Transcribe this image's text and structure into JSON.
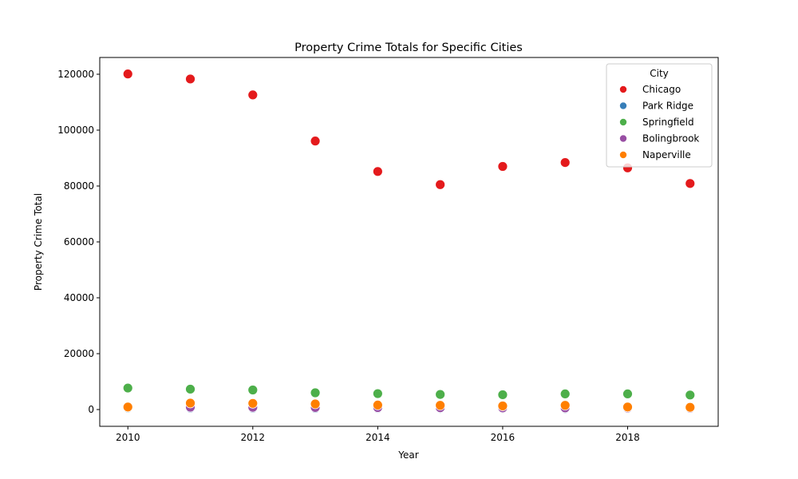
{
  "chart_data": {
    "type": "scatter",
    "title": "Property Crime Totals for Specific Cities",
    "xlabel": "Year",
    "ylabel": "Property Crime Total",
    "xlim": [
      2009.55,
      2019.45
    ],
    "ylim": [
      -6000,
      126000
    ],
    "xticks": [
      2010,
      2012,
      2014,
      2016,
      2018
    ],
    "yticks": [
      0,
      20000,
      40000,
      60000,
      80000,
      100000,
      120000
    ],
    "grid": false,
    "legend": {
      "title": "City",
      "position": "top-right"
    },
    "series": [
      {
        "name": "Chicago",
        "color": "#e41a1c",
        "x": [
          2010,
          2011,
          2012,
          2013,
          2014,
          2015,
          2016,
          2017,
          2018,
          2019
        ],
        "y": [
          120100,
          118300,
          112600,
          96100,
          85200,
          80500,
          87000,
          88400,
          86500,
          80900
        ]
      },
      {
        "name": "Park Ridge",
        "color": "#377eb8",
        "x": [
          2010,
          2011,
          2012,
          2013,
          2014,
          2015,
          2016,
          2017,
          2018,
          2019
        ],
        "y": [
          600,
          550,
          500,
          450,
          420,
          400,
          400,
          350,
          350,
          350
        ]
      },
      {
        "name": "Springfield",
        "color": "#4daf4a",
        "x": [
          2010,
          2011,
          2012,
          2013,
          2014,
          2015,
          2016,
          2017,
          2018,
          2019
        ],
        "y": [
          7700,
          7300,
          7000,
          6000,
          5700,
          5400,
          5300,
          5600,
          5600,
          5200
        ]
      },
      {
        "name": "Bolingbrook",
        "color": "#984ea3",
        "x": [
          2010,
          2011,
          2012,
          2013,
          2014,
          2015,
          2016,
          2017,
          2018,
          2019
        ],
        "y": [
          900,
          850,
          800,
          750,
          700,
          650,
          600,
          600,
          550,
          500
        ]
      },
      {
        "name": "Naperville",
        "color": "#ff7f00",
        "x": [
          2010,
          2011,
          2012,
          2013,
          2014,
          2015,
          2016,
          2017,
          2018,
          2019
        ],
        "y": [
          900,
          2300,
          2200,
          2000,
          1600,
          1500,
          1300,
          1500,
          900,
          800
        ]
      }
    ]
  }
}
